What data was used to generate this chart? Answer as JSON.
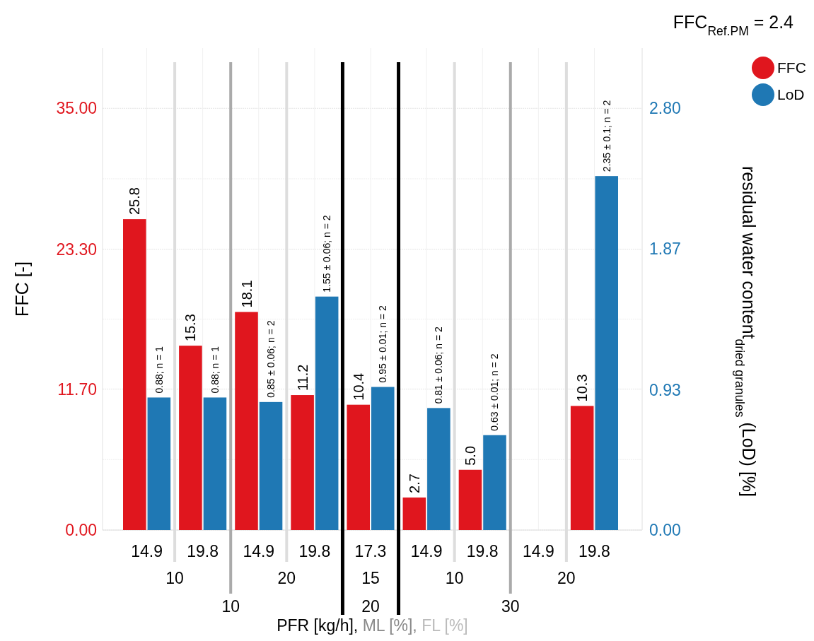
{
  "chart_data": {
    "type": "bar",
    "title": "FFC$_{Ref.PM}$ = 2.4",
    "ylabel": "FFC [-]",
    "y2label": "residual water content$_{dried granules}$ (LoD) [%]",
    "xlabel": "PFR [kg/h], ML [%], FL [%]",
    "categories": [
      "14.9",
      "19.8",
      "14.9",
      "19.8",
      "17.3",
      "14.9",
      "19.8",
      "14.9",
      "19.8"
    ],
    "series": [
      {
        "name": "FFC",
        "color": "#e0161e",
        "values": [
          25.8,
          15.3,
          18.1,
          11.2,
          10.4,
          2.7,
          5.0,
          null,
          10.3
        ],
        "value_labels": [
          "25.8",
          "15.3",
          "18.1",
          "11.2",
          "10.4",
          "2.7",
          "5.0",
          null,
          "10.3"
        ]
      },
      {
        "name": "LoD",
        "color": "#1f78b4",
        "axis": "y2",
        "values": [
          0.88,
          0.88,
          0.85,
          1.55,
          0.95,
          0.81,
          0.63,
          null,
          2.35
        ],
        "value_labels": [
          "0.88; n = 1",
          "0.88; n = 1",
          "0.85 ± 0.06; n = 2",
          "1.55 ± 0.06; n = 2",
          "0.95 ± 0.01; n = 2",
          "0.81 ± 0.06; n = 2",
          "0.63 ± 0.01; n = 2",
          null,
          "2.35 ± 0.1; n = 2"
        ]
      }
    ],
    "ylim": [
      0,
      40
    ],
    "yticks": [
      {
        "value": 0,
        "label": "0.00"
      },
      {
        "value": 11.7,
        "label": "11.70"
      },
      {
        "value": 23.3,
        "label": "23.30"
      },
      {
        "value": 35,
        "label": "35.00"
      }
    ],
    "y2lim": [
      0,
      3.2
    ],
    "y2ticks": [
      {
        "value": 0,
        "label": "0.00"
      },
      {
        "value": 0.93,
        "label": "0.93"
      },
      {
        "value": 1.87,
        "label": "1.87"
      },
      {
        "value": 2.8,
        "label": "2.80"
      }
    ],
    "annotations": [
      "10",
      "20",
      "15",
      "10",
      "20",
      "10",
      "20",
      "30"
    ],
    "grid": true,
    "legend": "top right"
  }
}
